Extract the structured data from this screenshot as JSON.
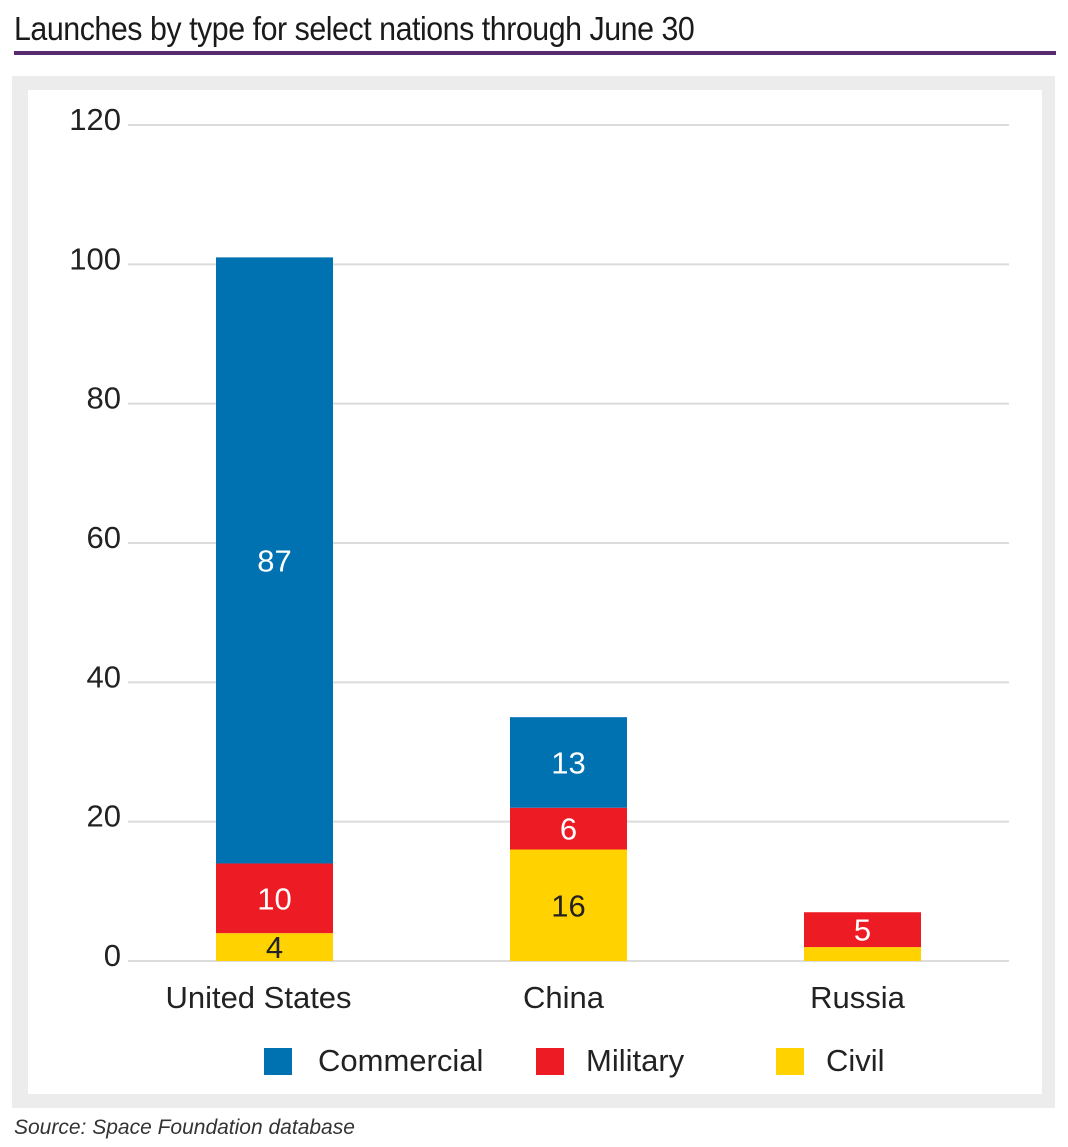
{
  "chart_data": {
    "type": "bar",
    "stacked": true,
    "title": "Launches by type for select nations through June 30",
    "categories": [
      "United States",
      "China",
      "Russia"
    ],
    "series": [
      {
        "name": "Civil",
        "color": "#ffd200",
        "values": [
          4,
          16,
          2
        ],
        "labels": [
          "4",
          "16",
          null
        ]
      },
      {
        "name": "Military",
        "color": "#ed1c24",
        "values": [
          10,
          6,
          5
        ],
        "labels": [
          "10",
          "6",
          "5"
        ]
      },
      {
        "name": "Commercial",
        "color": "#0072b1",
        "values": [
          87,
          13,
          0
        ],
        "labels": [
          "87",
          "13",
          null
        ]
      }
    ],
    "legend_order": [
      "Commercial",
      "Military",
      "Civil"
    ],
    "legend_position": "bottom",
    "ylim": [
      0,
      120
    ],
    "yticks": [
      "0",
      "20",
      "40",
      "60",
      "80",
      "100",
      "120"
    ],
    "grid": true,
    "xlabel": "",
    "ylabel": ""
  },
  "source": "Source:  Space Foundation database",
  "colors": {
    "title_rule": "#5a2a6e",
    "frame": "#ececec"
  }
}
